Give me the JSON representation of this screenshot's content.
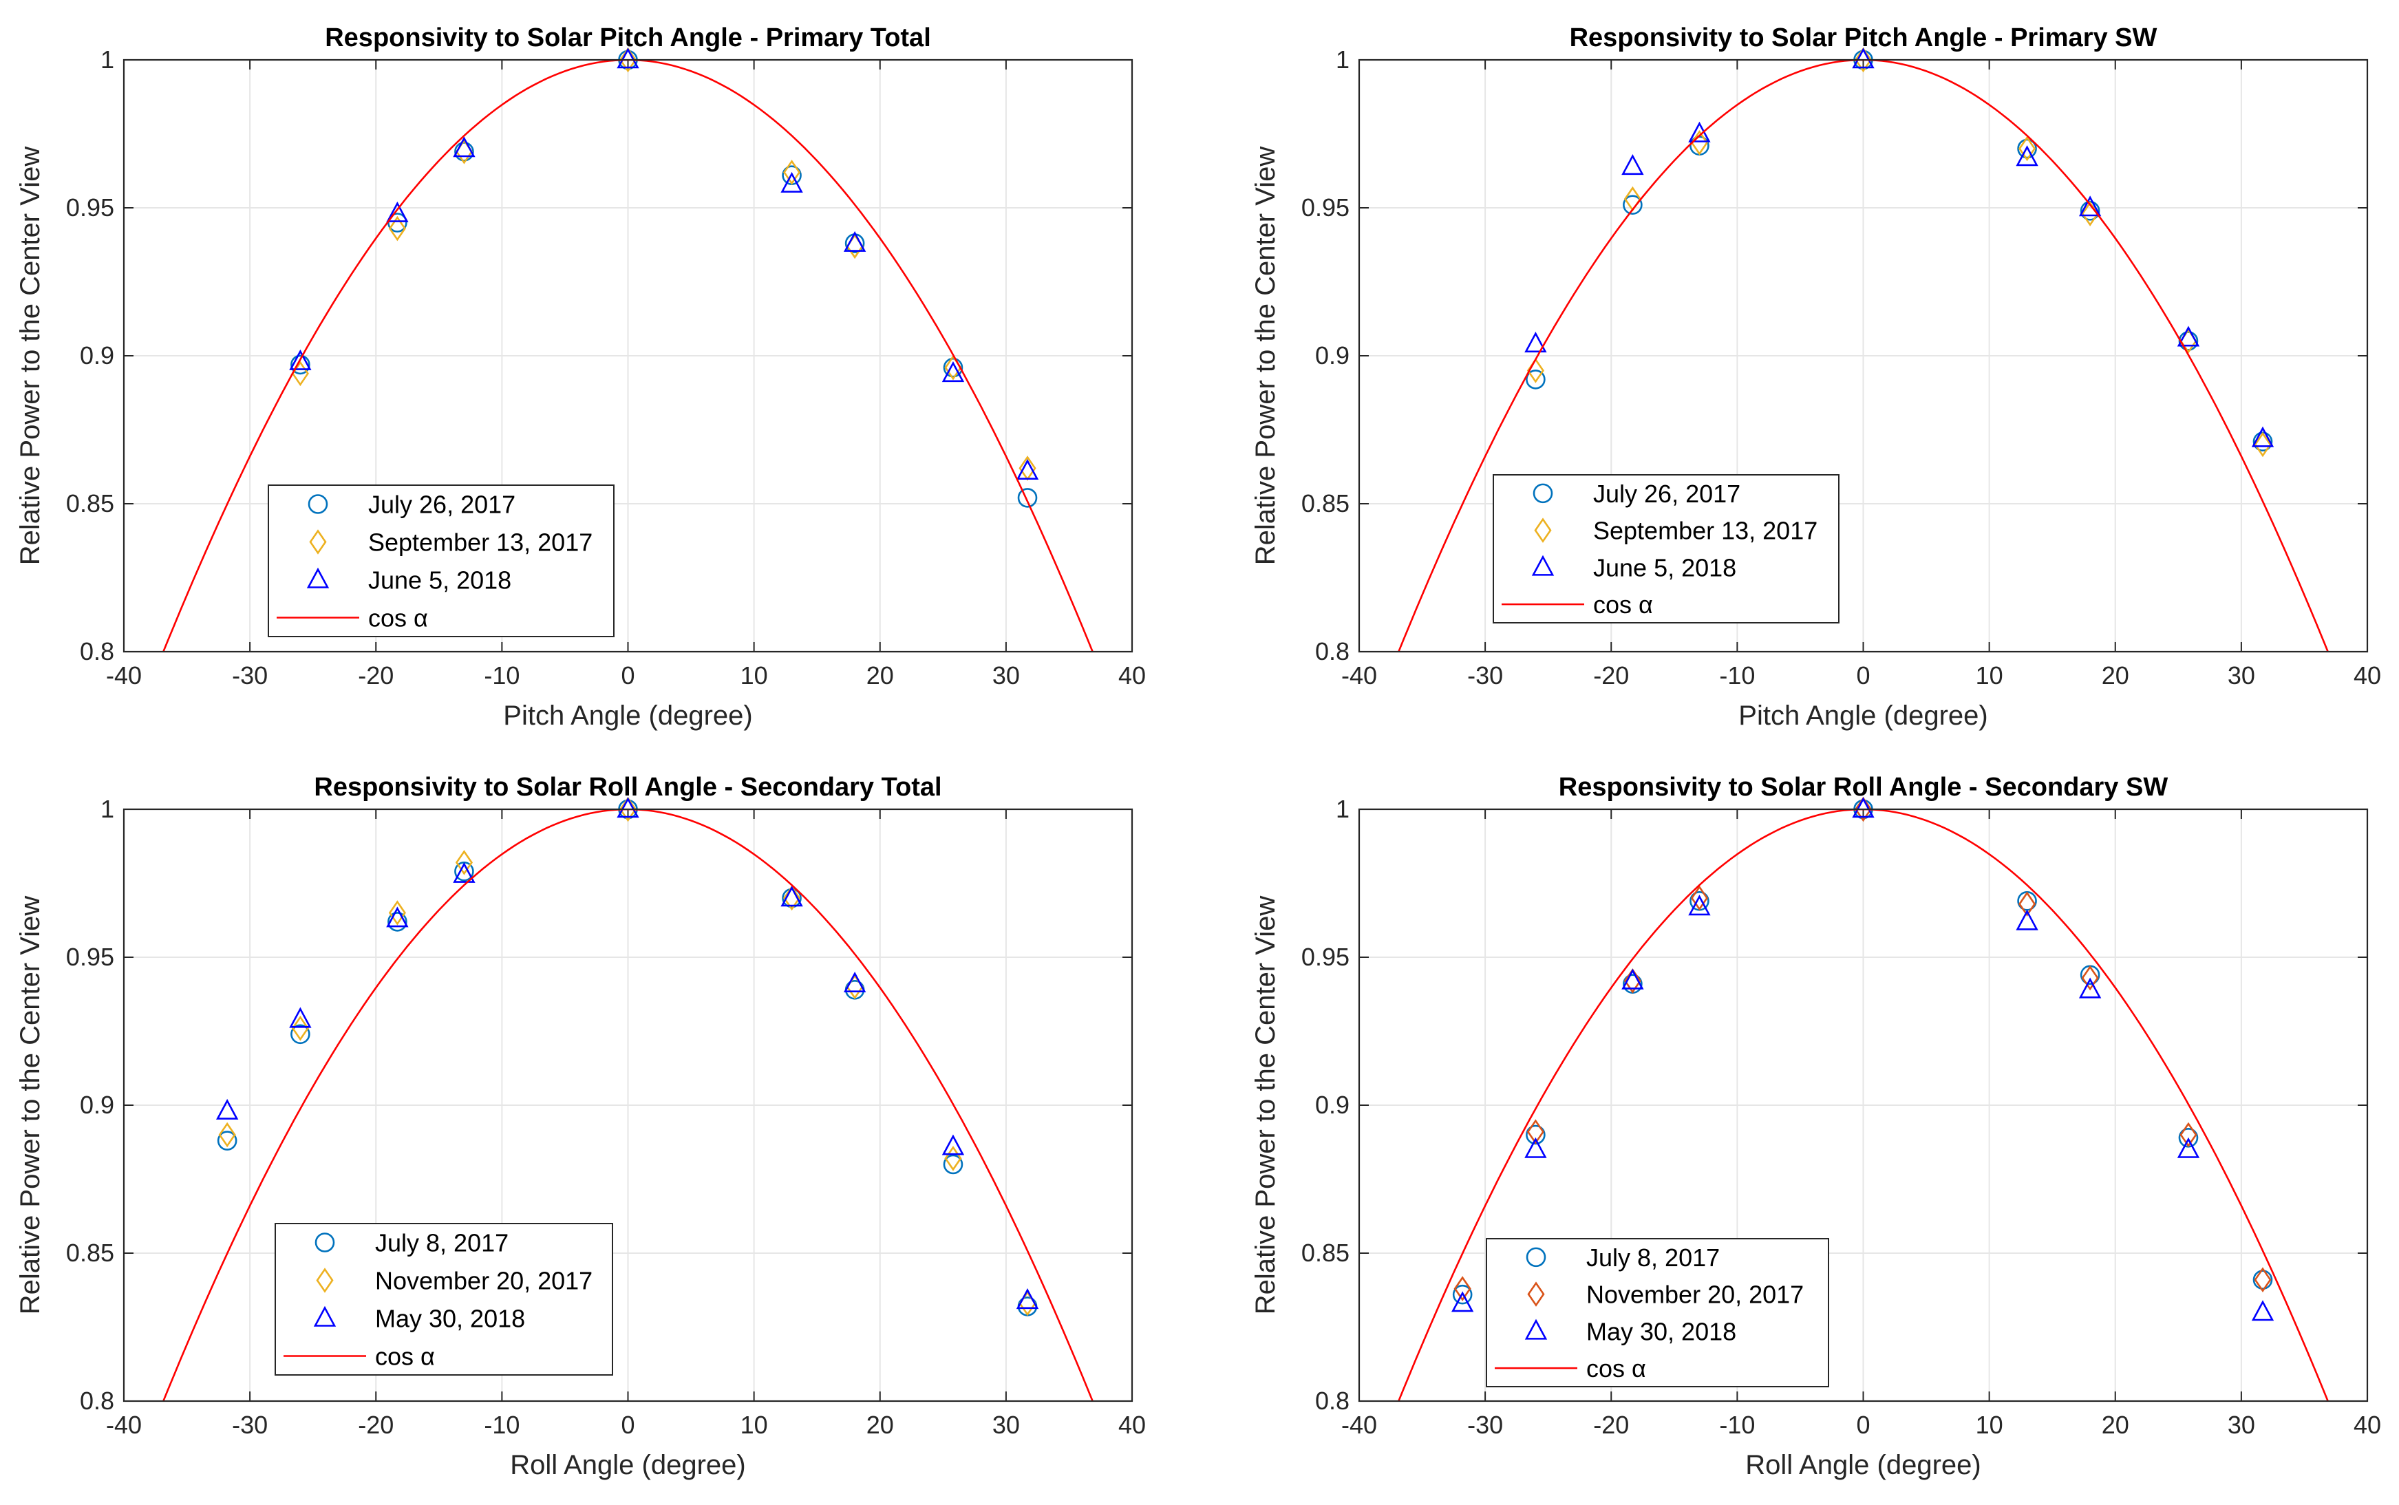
{
  "colors": {
    "marker_circle": "#0072BD",
    "marker_diamond": "#EDB120",
    "marker_diamond_alt": "#D95319",
    "marker_triangle": "#0000FF",
    "cos_curve": "#FF0000",
    "grid": "#E6E6E6",
    "axis": "#262626"
  },
  "chart_data": [
    {
      "id": "pitch-primary-total",
      "type": "scatter",
      "title": "Responsivity to Solar Pitch Angle - Primary Total",
      "xlabel": "Pitch Angle (degree)",
      "ylabel": "Relative Power to the Center View",
      "xlim": [
        -40,
        40
      ],
      "ylim": [
        0.8,
        1
      ],
      "xticks": [
        "-40",
        "-30",
        "-20",
        "-10",
        "0",
        "10",
        "20",
        "30",
        "40"
      ],
      "yticks": [
        "0.8",
        "0.85",
        "0.9",
        "0.95",
        "1"
      ],
      "grid": true,
      "legend_position": "bottom-left",
      "series": [
        {
          "name": "July 26, 2017",
          "marker": "circle",
          "color": "#0072BD",
          "x": [
            -26,
            -18.3,
            -13,
            0,
            13,
            18,
            25.8,
            31.7
          ],
          "y": [
            0.897,
            0.945,
            0.969,
            1.0,
            0.961,
            0.938,
            0.896,
            0.852
          ]
        },
        {
          "name": "September 13, 2017",
          "marker": "diamond",
          "color": "#EDB120",
          "x": [
            -26,
            -18.3,
            -13,
            0,
            13,
            18,
            25.8,
            31.7
          ],
          "y": [
            0.894,
            0.943,
            0.969,
            1.0,
            0.962,
            0.937,
            0.896,
            0.862
          ]
        },
        {
          "name": "June 5, 2018",
          "marker": "triangle",
          "color": "#0000FF",
          "x": [
            -26,
            -18.3,
            -13,
            0,
            13,
            18,
            25.8,
            31.7
          ],
          "y": [
            0.898,
            0.948,
            0.97,
            1.0,
            0.958,
            0.938,
            0.894,
            0.861
          ]
        },
        {
          "name": "cos α",
          "marker": "line",
          "color": "#FF0000",
          "function": "cos"
        }
      ]
    },
    {
      "id": "pitch-primary-sw",
      "type": "scatter",
      "title": "Responsivity to Solar Pitch Angle - Primary SW",
      "xlabel": "Pitch Angle (degree)",
      "ylabel": "Relative Power to the Center View",
      "xlim": [
        -40,
        40
      ],
      "ylim": [
        0.8,
        1
      ],
      "xticks": [
        "-40",
        "-30",
        "-20",
        "-10",
        "0",
        "10",
        "20",
        "30",
        "40"
      ],
      "yticks": [
        "0.8",
        "0.85",
        "0.9",
        "0.95",
        "1"
      ],
      "grid": true,
      "legend_position": "bottom-left",
      "series": [
        {
          "name": "July 26, 2017",
          "marker": "circle",
          "color": "#0072BD",
          "x": [
            -26,
            -18.3,
            -13,
            0,
            13,
            18,
            25.8,
            31.7
          ],
          "y": [
            0.892,
            0.951,
            0.971,
            1.0,
            0.97,
            0.949,
            0.905,
            0.871
          ]
        },
        {
          "name": "September 13, 2017",
          "marker": "diamond",
          "color": "#EDB120",
          "x": [
            -26,
            -18.3,
            -13,
            0,
            13,
            18,
            25.8,
            31.7
          ],
          "y": [
            0.895,
            0.953,
            0.972,
            1.0,
            0.97,
            0.948,
            0.905,
            0.87
          ]
        },
        {
          "name": "June 5, 2018",
          "marker": "triangle",
          "color": "#0000FF",
          "x": [
            -26,
            -18.3,
            -13,
            0,
            13,
            18,
            25.8,
            31.7
          ],
          "y": [
            0.904,
            0.964,
            0.975,
            1.0,
            0.967,
            0.95,
            0.906,
            0.872
          ]
        },
        {
          "name": "cos α",
          "marker": "line",
          "color": "#FF0000",
          "function": "cos"
        }
      ]
    },
    {
      "id": "roll-secondary-total",
      "type": "scatter",
      "title": "Responsivity to Solar Roll Angle - Secondary Total",
      "xlabel": "Roll Angle (degree)",
      "ylabel": "Relative Power to the Center View",
      "xlim": [
        -40,
        40
      ],
      "ylim": [
        0.8,
        1
      ],
      "xticks": [
        "-40",
        "-30",
        "-20",
        "-10",
        "0",
        "10",
        "20",
        "30",
        "40"
      ],
      "yticks": [
        "0.8",
        "0.85",
        "0.9",
        "0.95",
        "1"
      ],
      "grid": true,
      "legend_position": "bottom-left",
      "series": [
        {
          "name": "July 8, 2017",
          "marker": "circle",
          "color": "#0072BD",
          "x": [
            -31.8,
            -26,
            -18.3,
            -13,
            0,
            13,
            18,
            25.8,
            31.7
          ],
          "y": [
            0.888,
            0.924,
            0.962,
            0.979,
            1.0,
            0.97,
            0.939,
            0.88,
            0.832
          ]
        },
        {
          "name": "November 20, 2017",
          "marker": "diamond",
          "color": "#EDB120",
          "x": [
            -31.8,
            -26,
            -18.3,
            -13,
            0,
            13,
            18,
            25.8,
            31.7
          ],
          "y": [
            0.89,
            0.926,
            0.965,
            0.982,
            1.0,
            0.97,
            0.94,
            0.882,
            0.833
          ]
        },
        {
          "name": "May 30, 2018",
          "marker": "triangle",
          "color": "#0000FF",
          "x": [
            -31.8,
            -26,
            -18.3,
            -13,
            0,
            13,
            18,
            25.8,
            31.7
          ],
          "y": [
            0.898,
            0.929,
            0.963,
            0.978,
            1.0,
            0.97,
            0.941,
            0.886,
            0.834
          ]
        },
        {
          "name": "cos α",
          "marker": "line",
          "color": "#FF0000",
          "function": "cos"
        }
      ]
    },
    {
      "id": "roll-secondary-sw",
      "type": "scatter",
      "title": "Responsivity to Solar Roll Angle - Secondary SW",
      "xlabel": "Roll Angle (degree)",
      "ylabel": "Relative Power to the Center View",
      "xlim": [
        -40,
        40
      ],
      "ylim": [
        0.8,
        1
      ],
      "xticks": [
        "-40",
        "-30",
        "-20",
        "-10",
        "0",
        "10",
        "20",
        "30",
        "40"
      ],
      "yticks": [
        "0.8",
        "0.85",
        "0.9",
        "0.95",
        "1"
      ],
      "grid": true,
      "legend_position": "bottom-left",
      "series": [
        {
          "name": "July 8, 2017",
          "marker": "circle",
          "color": "#0072BD",
          "x": [
            -31.8,
            -26,
            -18.3,
            -13,
            0,
            13,
            18,
            25.8,
            31.7
          ],
          "y": [
            0.836,
            0.89,
            0.941,
            0.969,
            1.0,
            0.969,
            0.944,
            0.889,
            0.841
          ]
        },
        {
          "name": "November 20, 2017",
          "marker": "diamond",
          "color": "#D95319",
          "x": [
            -31.8,
            -26,
            -18.3,
            -13,
            0,
            13,
            18,
            25.8,
            31.7
          ],
          "y": [
            0.838,
            0.891,
            0.942,
            0.97,
            1.0,
            0.968,
            0.943,
            0.89,
            0.841
          ]
        },
        {
          "name": "May 30, 2018",
          "marker": "triangle",
          "color": "#0000FF",
          "x": [
            -31.8,
            -26,
            -18.3,
            -13,
            0,
            13,
            18,
            25.8,
            31.7
          ],
          "y": [
            0.833,
            0.885,
            0.942,
            0.967,
            1.0,
            0.962,
            0.939,
            0.885,
            0.83
          ]
        },
        {
          "name": "cos α",
          "marker": "line",
          "color": "#FF0000",
          "function": "cos"
        }
      ]
    }
  ]
}
